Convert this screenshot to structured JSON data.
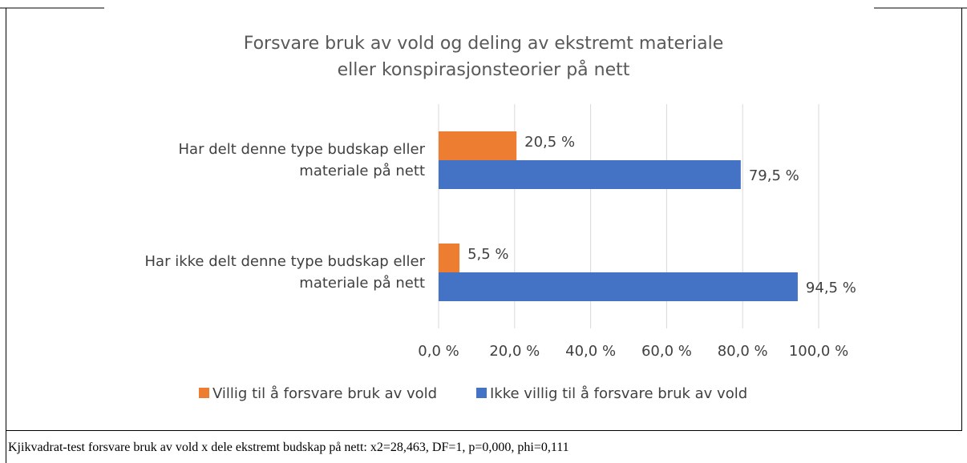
{
  "chart_data": {
    "type": "barh",
    "title": "Forsvare bruk av vold og deling av ekstremt materiale eller konspirasjonsteorier på nett",
    "categories": [
      "Har delt denne type budskap eller materiale på nett",
      "Har ikke delt denne type budskap eller materiale på nett"
    ],
    "series": [
      {
        "name": "Villig til å forsvare bruk av vold",
        "color": "#ed7d31",
        "values": [
          20.5,
          5.5
        ],
        "value_labels": [
          "20,5 %",
          "5,5 %"
        ]
      },
      {
        "name": "Ikke villig til å forsvare bruk av vold",
        "color": "#4472c4",
        "values": [
          79.5,
          94.5
        ],
        "value_labels": [
          "79,5 %",
          "94,5 %"
        ]
      }
    ],
    "xlim": [
      0,
      100
    ],
    "xticks": [
      {
        "value": 0,
        "label": "0,0 %"
      },
      {
        "value": 20,
        "label": "20,0 %"
      },
      {
        "value": 40,
        "label": "40,0 %"
      },
      {
        "value": 60,
        "label": "60,0 %"
      },
      {
        "value": 80,
        "label": "80,0 %"
      },
      {
        "value": 100,
        "label": "100,0 %"
      }
    ],
    "grid": true,
    "legend": "bottom",
    "note": "Kjikvadrat-test forsvare bruk av vold x dele ekstremt budskap på nett: x2=28,463, DF=1, p=0,000, phi=0,111"
  }
}
